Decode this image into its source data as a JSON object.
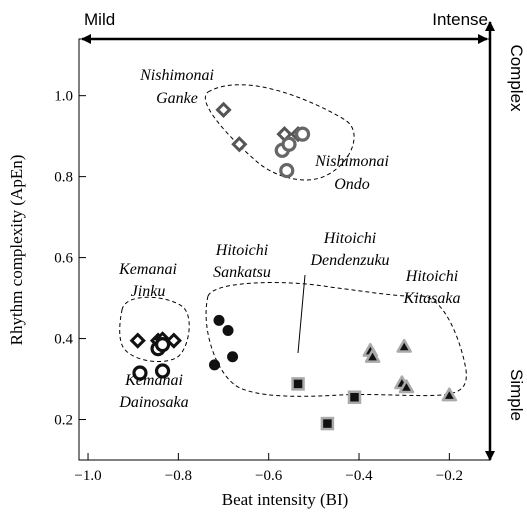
{
  "chart_data": {
    "type": "scatter",
    "xlabel": "Beat intensity (BI)",
    "ylabel": "Rhythm complexity (ApEn)",
    "xlim": [
      -1.02,
      -0.11
    ],
    "ylim": [
      0.1,
      1.14
    ],
    "xticks": [
      -1.0,
      -0.8,
      -0.6,
      -0.4,
      -0.2
    ],
    "xtick_labels": [
      "−1.0",
      "−0.8",
      "−0.6",
      "−0.4",
      "−0.2"
    ],
    "yticks": [
      0.2,
      0.4,
      0.6,
      0.8,
      1.0
    ],
    "ytick_labels": [
      "0.2",
      "0.4",
      "0.6",
      "0.8",
      "1.0"
    ],
    "grid": false,
    "top_axis": {
      "left_label": "Mild",
      "right_label": "Intense"
    },
    "right_axis": {
      "top_label": "Complex",
      "bottom_label": "Simple"
    },
    "series": [
      {
        "name": "Nishimonai Ganke",
        "marker": "diamond-open",
        "color": "#555555",
        "points": [
          [
            -0.7,
            0.965
          ],
          [
            -0.665,
            0.88
          ],
          [
            -0.565,
            0.905
          ],
          [
            -0.535,
            0.905
          ]
        ]
      },
      {
        "name": "Nishimonai Ondo",
        "marker": "circle-open",
        "color": "#666666",
        "points": [
          [
            -0.57,
            0.865
          ],
          [
            -0.555,
            0.88
          ],
          [
            -0.525,
            0.905
          ],
          [
            -0.56,
            0.815
          ]
        ]
      },
      {
        "name": "Kemanai Jinku",
        "marker": "diamond-open",
        "color": "#111111",
        "points": [
          [
            -0.89,
            0.395
          ],
          [
            -0.845,
            0.395
          ],
          [
            -0.835,
            0.398
          ],
          [
            -0.81,
            0.395
          ]
        ]
      },
      {
        "name": "Kemanai Dainosaka",
        "marker": "circle-open",
        "color": "#111111",
        "points": [
          [
            -0.885,
            0.315
          ],
          [
            -0.845,
            0.375
          ],
          [
            -0.835,
            0.385
          ],
          [
            -0.835,
            0.32
          ]
        ]
      },
      {
        "name": "Hitoichi Sankatsu",
        "marker": "circle-filled",
        "color": "#111111",
        "points": [
          [
            -0.71,
            0.445
          ],
          [
            -0.69,
            0.42
          ],
          [
            -0.72,
            0.335
          ],
          [
            -0.68,
            0.355
          ]
        ]
      },
      {
        "name": "Hitoichi Dendenzuku",
        "marker": "square-filled-gray-edge",
        "color": "#111111",
        "points": [
          [
            -0.535,
            0.288
          ],
          [
            -0.41,
            0.255
          ],
          [
            -0.47,
            0.19
          ]
        ]
      },
      {
        "name": "Hitoichi Kitasaka",
        "marker": "triangle-filled-gray-edge",
        "color": "#111111",
        "points": [
          [
            -0.375,
            0.37
          ],
          [
            -0.37,
            0.355
          ],
          [
            -0.3,
            0.38
          ],
          [
            -0.305,
            0.29
          ],
          [
            -0.295,
            0.28
          ],
          [
            -0.2,
            0.26
          ]
        ]
      }
    ],
    "annotations": [
      {
        "lines": [
          "Nishimonai",
          "Ganke"
        ]
      },
      {
        "lines": [
          "Nishimonai",
          "Ondo"
        ]
      },
      {
        "lines": [
          "Kemanai",
          "Jinku"
        ]
      },
      {
        "lines": [
          "Kemanai",
          "Dainosaka"
        ]
      },
      {
        "lines": [
          "Hitoichi",
          "Sankatsu"
        ]
      },
      {
        "lines": [
          "Hitoichi",
          "Dendenzuku"
        ]
      },
      {
        "lines": [
          "Hitoichi",
          "Kitasaka"
        ]
      }
    ]
  }
}
